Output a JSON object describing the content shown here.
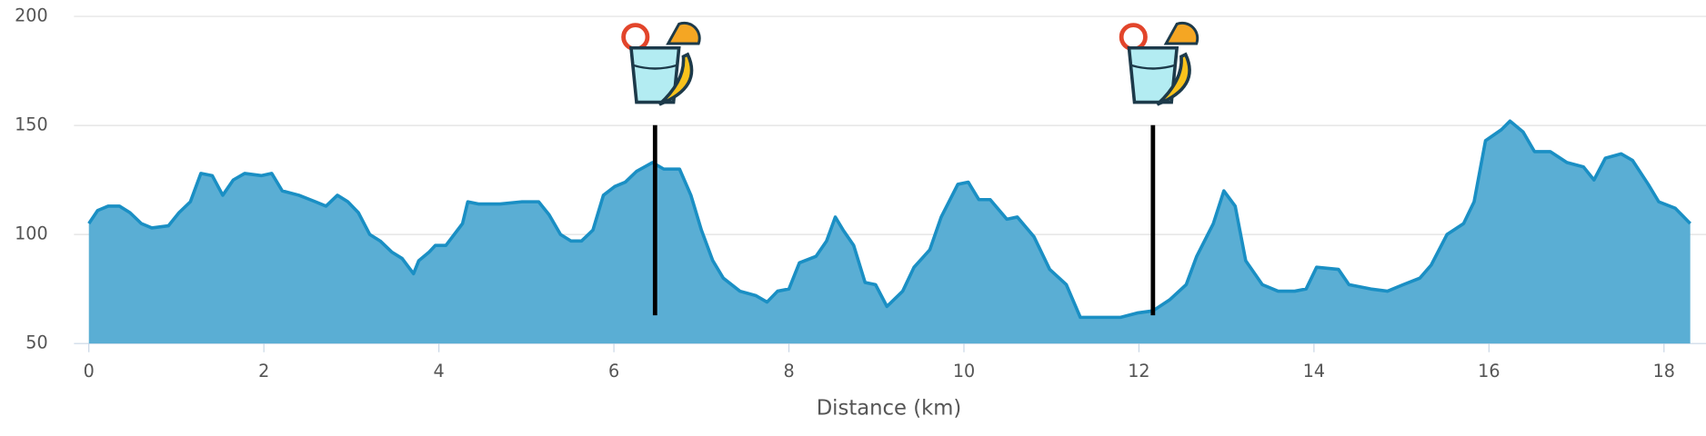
{
  "chart_data": {
    "type": "area",
    "x_label": "Distance (km)",
    "x": [
      0,
      0.1,
      0.22,
      0.35,
      0.47,
      0.6,
      0.72,
      0.91,
      1.03,
      1.16,
      1.28,
      1.41,
      1.53,
      1.65,
      1.78,
      1.97,
      2.09,
      2.21,
      2.4,
      2.59,
      2.71,
      2.84,
      2.96,
      3.08,
      3.21,
      3.33,
      3.46,
      3.58,
      3.71,
      3.77,
      3.89,
      3.96,
      4.08,
      4.27,
      4.33,
      4.45,
      4.7,
      4.95,
      5.14,
      5.26,
      5.39,
      5.51,
      5.63,
      5.76,
      5.88,
      6.01,
      6.13,
      6.26,
      6.44,
      6.57,
      6.75,
      6.88,
      7.0,
      7.13,
      7.25,
      7.44,
      7.62,
      7.75,
      7.87,
      8.0,
      8.12,
      8.31,
      8.43,
      8.53,
      8.62,
      8.74,
      8.87,
      8.99,
      9.12,
      9.3,
      9.43,
      9.61,
      9.74,
      9.93,
      10.05,
      10.17,
      10.3,
      10.49,
      10.61,
      10.8,
      10.98,
      11.17,
      11.33,
      11.54,
      11.79,
      11.98,
      12.16,
      12.35,
      12.54,
      12.66,
      12.85,
      12.97,
      13.1,
      13.22,
      13.41,
      13.59,
      13.78,
      13.91,
      14.03,
      14.28,
      14.4,
      14.65,
      14.84,
      15.02,
      15.21,
      15.34,
      15.52,
      15.71,
      15.83,
      15.96,
      16.14,
      16.24,
      16.39,
      16.52,
      16.7,
      16.89,
      17.08,
      17.2,
      17.33,
      17.51,
      17.64,
      17.82,
      17.94,
      18.13,
      18.3
    ],
    "series": [
      {
        "color": "#5aaed4",
        "line_color": "#1a8fc4",
        "values": [
          105,
          111,
          113,
          113,
          110,
          105,
          103,
          104,
          110,
          115,
          128,
          127,
          118,
          125,
          128,
          127,
          128,
          120,
          118,
          115,
          113,
          118,
          115,
          110,
          100,
          97,
          92,
          89,
          82,
          88,
          92,
          95,
          95,
          105,
          115,
          114,
          114,
          115,
          115,
          109,
          100,
          97,
          97,
          102,
          118,
          122,
          124,
          129,
          133,
          130,
          130,
          118,
          102,
          88,
          80,
          74,
          72,
          69,
          74,
          75,
          87,
          90,
          97,
          108,
          102,
          95,
          78,
          77,
          67,
          74,
          85,
          93,
          108,
          123,
          124,
          116,
          116,
          107,
          108,
          99,
          84,
          77,
          62,
          62,
          62,
          64,
          65,
          70,
          77,
          90,
          105,
          120,
          113,
          88,
          77,
          74,
          74,
          75,
          85,
          84,
          77,
          75,
          74,
          77,
          80,
          86,
          100,
          105,
          115,
          143,
          148,
          152,
          147,
          138,
          138,
          133,
          131,
          125,
          135,
          137,
          134,
          123,
          115,
          112,
          105
        ]
      }
    ],
    "xlim": [
      -0.17,
      18.48
    ],
    "xticks": [
      0,
      2,
      4,
      6,
      8,
      10,
      12,
      14,
      16,
      18
    ],
    "ylim": [
      50,
      200
    ],
    "yticks": [
      50,
      100,
      150,
      200
    ],
    "grid": true,
    "markers": [
      {
        "x": 6.47
      },
      {
        "x": 12.16
      }
    ]
  }
}
